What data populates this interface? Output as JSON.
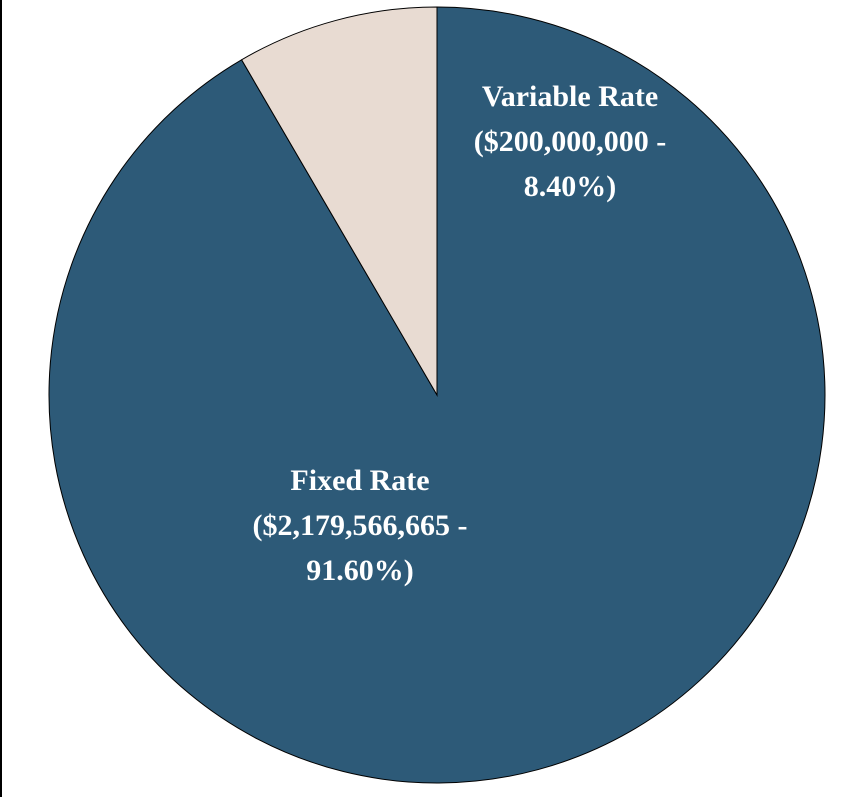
{
  "chart_data": {
    "type": "pie",
    "categories": [
      "Fixed Rate",
      "Variable Rate"
    ],
    "values": [
      91.6,
      8.4
    ],
    "value_labels": [
      "($2,179,566,665 - 91.60%)",
      "($200,000,000 - 8.40%)"
    ],
    "colors": [
      "#2d5a78",
      "#e8dbd2"
    ],
    "start_angle": 0,
    "direction": "clockwise"
  }
}
